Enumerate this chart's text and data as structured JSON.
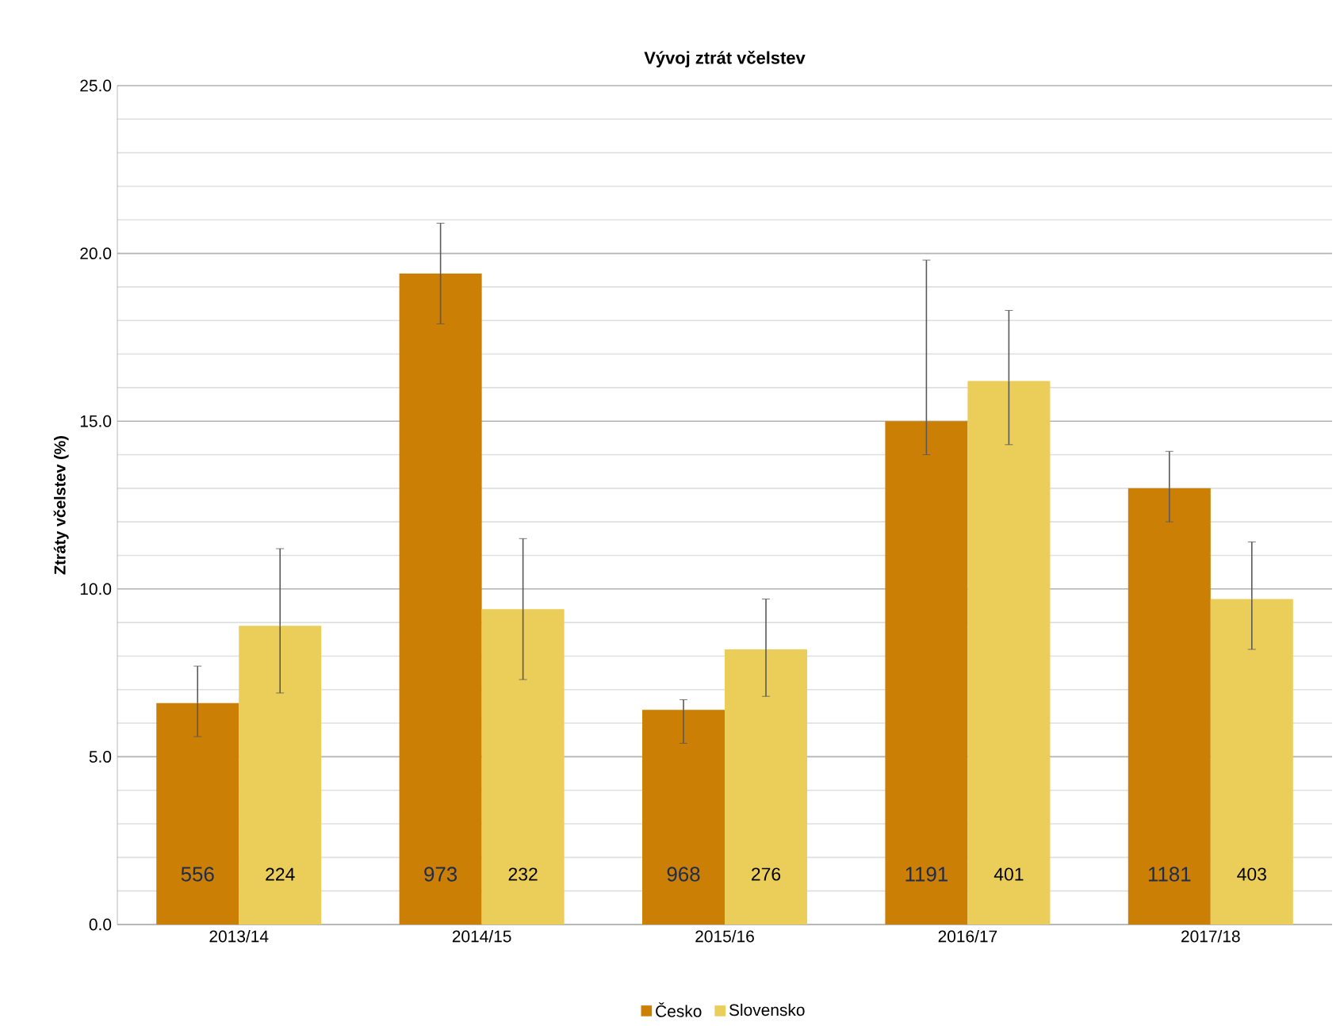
{
  "chart_data": {
    "type": "bar",
    "title": "Vývoj ztrát včelstev",
    "ylabel": "Ztráty včelstev (%)",
    "categories": [
      "2013/14",
      "2014/15",
      "2015/16",
      "2016/17",
      "2017/18"
    ],
    "series": [
      {
        "name": "Česko",
        "color": "#cc7f05",
        "values": [
          6.6,
          19.4,
          6.4,
          15.0,
          13.0
        ],
        "errors": [
          [
            5.6,
            7.7
          ],
          [
            17.9,
            20.9
          ],
          [
            5.4,
            6.7
          ],
          [
            14.0,
            19.8
          ],
          [
            12.0,
            14.1
          ]
        ]
      },
      {
        "name": "Slovensko",
        "color": "#ebcd5a",
        "values": [
          8.9,
          9.4,
          8.2,
          16.2,
          9.7
        ],
        "errors": [
          [
            6.9,
            11.2
          ],
          [
            7.3,
            11.5
          ],
          [
            6.8,
            9.7
          ],
          [
            14.3,
            18.3
          ],
          [
            8.2,
            11.4
          ]
        ]
      }
    ],
    "annotations": [
      {
        "text": "556",
        "x": "2013/14",
        "y": 1.5
      },
      {
        "text": "224",
        "x": "2013/14",
        "y": 1.5
      },
      {
        "text": "973",
        "x": "2014/15",
        "y": 1.5
      },
      {
        "text": "232",
        "x": "2014/15",
        "y": 1.5
      },
      {
        "text": "968",
        "x": "2015/16",
        "y": 1.5
      },
      {
        "text": "276",
        "x": "2015/16",
        "y": 1.5
      },
      {
        "text": "1191",
        "x": "2016/17",
        "y": 1.5
      },
      {
        "text": "401",
        "x": "2016/17",
        "y": 1.5
      },
      {
        "text": "1181",
        "x": "2017/18",
        "y": 1.5
      },
      {
        "text": "403",
        "x": "2017/18",
        "y": 1.5
      }
    ],
    "ylim": [
      0,
      25
    ],
    "yticks": [
      {
        "value": 0,
        "label": "0.0"
      },
      {
        "value": 5,
        "label": "5.0"
      },
      {
        "value": 10,
        "label": "10.0"
      },
      {
        "value": 15,
        "label": "15.0"
      },
      {
        "value": 20,
        "label": "20.0"
      },
      {
        "value": 25,
        "label": "25.0"
      }
    ],
    "grid": "y",
    "legend": "bottom"
  }
}
